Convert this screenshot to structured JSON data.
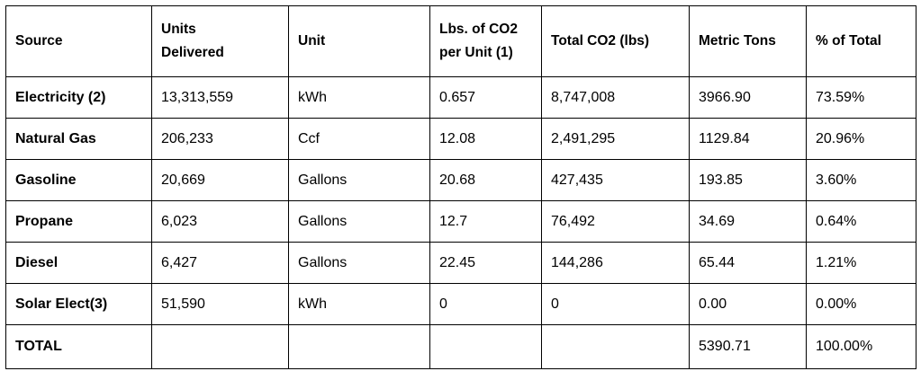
{
  "table": {
    "header": [
      [
        "Source"
      ],
      [
        "Units",
        "Delivered"
      ],
      [
        "Unit"
      ],
      [
        "Lbs. of CO2",
        "per Unit (1)"
      ],
      [
        "Total   CO2 (lbs)"
      ],
      [
        "Metric Tons"
      ],
      [
        "% of  Total"
      ]
    ],
    "rows": [
      [
        "Electricity (2)",
        "13,313,559",
        "kWh",
        "0.657",
        "8,747,008",
        "3966.90",
        "73.59%"
      ],
      [
        "Natural Gas",
        "206,233",
        "Ccf",
        "12.08",
        "2,491,295",
        "1129.84",
        "20.96%"
      ],
      [
        "Gasoline",
        "20,669",
        "Gallons",
        "20.68",
        "427,435",
        "193.85",
        "3.60%"
      ],
      [
        "Propane",
        "6,023",
        "Gallons",
        "12.7",
        "76,492",
        "34.69",
        "0.64%"
      ],
      [
        "Diesel",
        "6,427",
        "Gallons",
        "22.45",
        "144,286",
        "65.44",
        "1.21%"
      ],
      [
        "Solar Elect(3)",
        "51,590",
        "kWh",
        "0",
        "0",
        "0.00",
        "0.00%"
      ],
      [
        "TOTAL",
        null,
        null,
        null,
        null,
        "5390.71",
        "100.00%"
      ]
    ]
  }
}
